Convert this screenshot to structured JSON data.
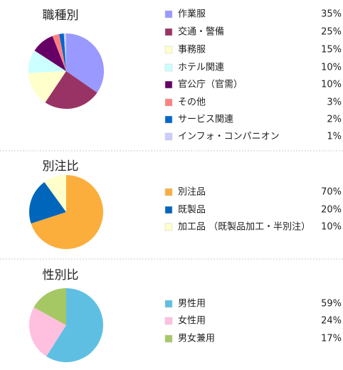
{
  "chart_data": [
    {
      "type": "pie",
      "title": "職種別",
      "categories": [
        "作業服",
        "交通・警備",
        "事務服",
        "ホテル関連",
        "官公庁（官需）",
        "その他",
        "サービス関連",
        "インフォ・コンパニオン"
      ],
      "values": [
        35,
        25,
        15,
        10,
        10,
        3,
        2,
        1
      ],
      "value_labels": [
        "35%",
        "25%",
        "15%",
        "10%",
        "10%",
        "3%",
        "2%",
        "1%"
      ],
      "colors": [
        "#9999ff",
        "#993366",
        "#ffffcc",
        "#ccffff",
        "#660066",
        "#ff8080",
        "#0066cc",
        "#ccccff"
      ]
    },
    {
      "type": "pie",
      "title": "別注比",
      "categories": [
        "別注品",
        "既製品",
        "加工品 （既製品加工・半別注）"
      ],
      "values": [
        70,
        20,
        10
      ],
      "value_labels": [
        "70%",
        "20%",
        "10%"
      ],
      "colors": [
        "#fbae3c",
        "#0066bb",
        "#ffffcc"
      ]
    },
    {
      "type": "pie",
      "title": "性別比",
      "categories": [
        "男性用",
        "女性用",
        "男女兼用"
      ],
      "values": [
        59,
        24,
        17
      ],
      "value_labels": [
        "59%",
        "24%",
        "17%"
      ],
      "colors": [
        "#5fbfe3",
        "#ffc0df",
        "#a6c864"
      ]
    }
  ]
}
